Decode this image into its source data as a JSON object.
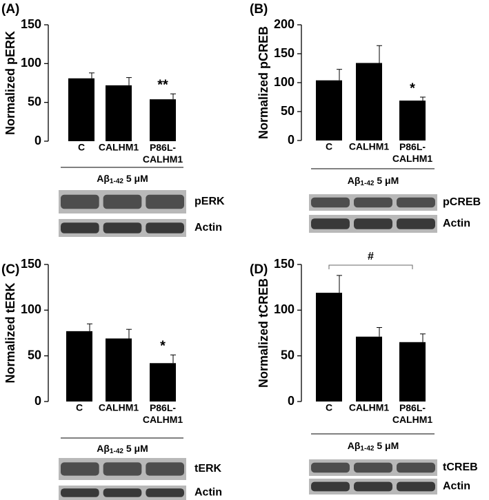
{
  "chart_data": [
    {
      "type": "bar",
      "panel": "(A)",
      "y_label": "Normalized pERK",
      "categories": [
        "C",
        "CALHM1",
        "P86L-CALHM1"
      ],
      "values": [
        81,
        72,
        54
      ],
      "errors": [
        7,
        10,
        7
      ],
      "significance": [
        null,
        null,
        "**"
      ],
      "color": "#000000",
      "ylim": [
        0,
        150
      ],
      "yticks": [
        0,
        50,
        100,
        150
      ],
      "treatment": {
        "base": "Aβ",
        "sub": "1-42",
        "rest": " 5 μM"
      },
      "blots": [
        "pERK",
        "Actin"
      ]
    },
    {
      "type": "bar",
      "panel": "(B)",
      "y_label": "Normalized pCREB",
      "categories": [
        "C",
        "CALHM1",
        "P86L-CALHM1"
      ],
      "values": [
        104,
        134,
        69
      ],
      "errors": [
        19,
        30,
        6
      ],
      "significance": [
        null,
        null,
        "*"
      ],
      "color": "#000000",
      "ylim": [
        0,
        200
      ],
      "yticks": [
        0,
        50,
        100,
        150,
        200
      ],
      "treatment": {
        "base": "Aβ",
        "sub": "1-42",
        "rest": " 5 μM"
      },
      "blots": [
        "pCREB",
        "Actin"
      ]
    },
    {
      "type": "bar",
      "panel": "(C)",
      "y_label": "Normalized tERK",
      "categories": [
        "C",
        "CALHM1",
        "P86L-CALHM1"
      ],
      "values": [
        77,
        69,
        42
      ],
      "errors": [
        8,
        10,
        9
      ],
      "significance": [
        null,
        null,
        "*"
      ],
      "color": "#000000",
      "ylim": [
        0,
        150
      ],
      "yticks": [
        0,
        50,
        100,
        150
      ],
      "treatment": {
        "base": "Aβ",
        "sub": "1-42",
        "rest": " 5 μM"
      },
      "blots": [
        "tERK",
        "Actin"
      ]
    },
    {
      "type": "bar",
      "panel": "(D)",
      "y_label": "Normalized tCREB",
      "categories": [
        "C",
        "CALHM1",
        "P86L-CALHM1"
      ],
      "values": [
        119,
        71,
        65
      ],
      "errors": [
        19,
        10,
        9
      ],
      "comparison": "#",
      "color": "#000000",
      "ylim": [
        0,
        150
      ],
      "yticks": [
        0,
        50,
        100,
        150
      ],
      "treatment": {
        "base": "Aβ",
        "sub": "1-42",
        "rest": " 5 μM"
      },
      "blots": [
        "tCREB",
        "Actin"
      ]
    }
  ]
}
